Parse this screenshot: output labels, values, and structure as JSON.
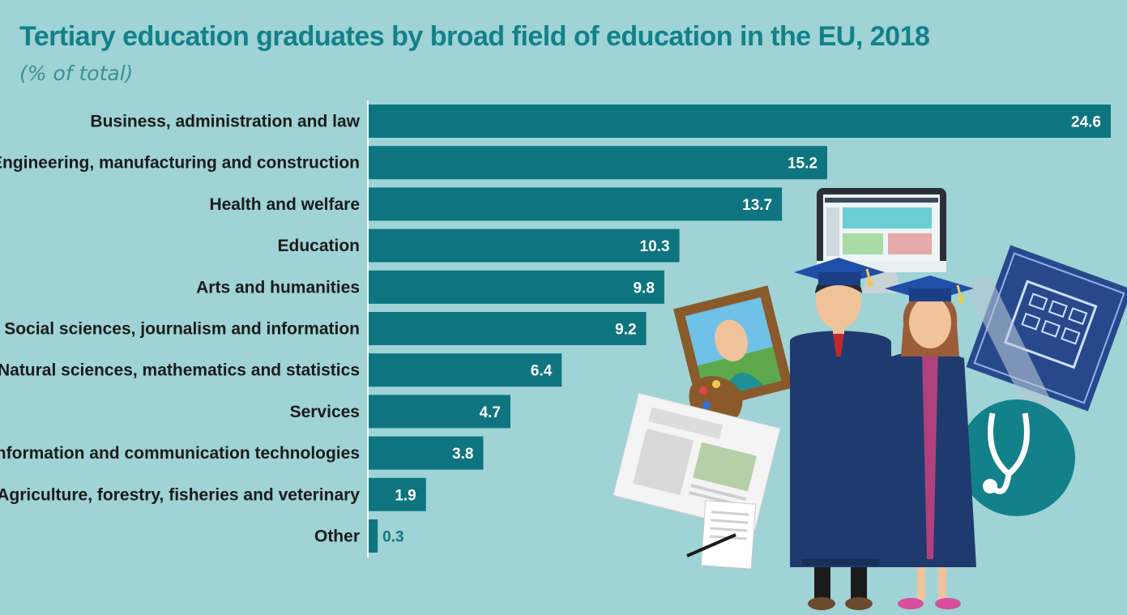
{
  "title": "Tertiary education graduates by broad field of education in the EU, 2018",
  "subtitle": "(% of total)",
  "colors": {
    "background": "#9fd3d5",
    "bar": "#0e7580",
    "title": "#12818a",
    "value_inside": "#ffffff",
    "value_outside": "#0e7580"
  },
  "chart_data": {
    "type": "bar",
    "orientation": "horizontal",
    "title": "Tertiary education graduates by broad field of education in the EU, 2018",
    "subtitle": "(% of total)",
    "xlabel": "",
    "ylabel": "",
    "xlim": [
      0,
      24.6
    ],
    "grid": false,
    "legend": "none",
    "categories": [
      "Business, administration and law",
      "Engineering, manufacturing and construction",
      "Health and welfare",
      "Education",
      "Arts and humanities",
      "Social sciences, journalism and information",
      "Natural sciences, mathematics and statistics",
      "Services",
      "Information and communication technologies",
      "Agriculture, forestry, fisheries and veterinary",
      "Other"
    ],
    "values": [
      24.6,
      15.2,
      13.7,
      10.3,
      9.8,
      9.2,
      6.4,
      4.7,
      3.8,
      1.9,
      0.3
    ],
    "value_labels": [
      "24.6",
      "15.2",
      "13.7",
      "10.3",
      "9.8",
      "9.2",
      "6.4",
      "4.7",
      "3.8",
      "1.9",
      "0.3"
    ]
  }
}
